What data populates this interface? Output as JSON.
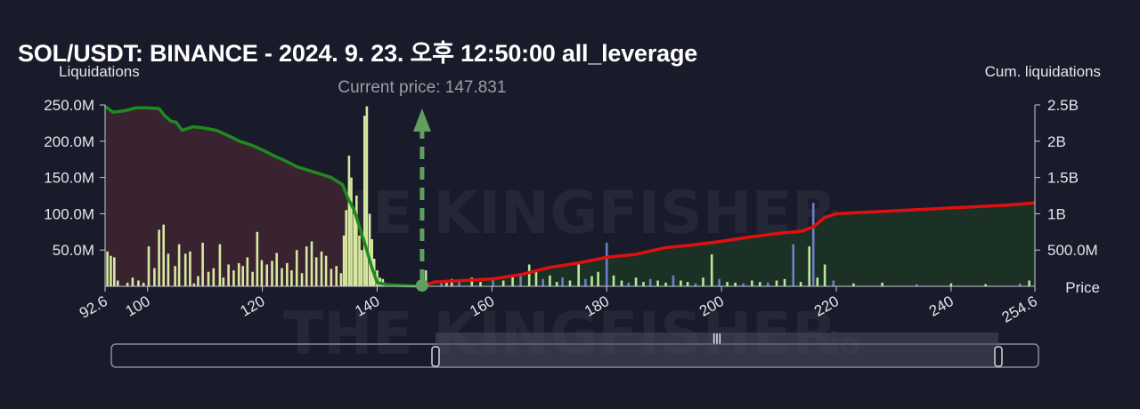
{
  "header": {
    "title": "SOL/USDT: BINANCE - 2024. 9. 23. 오후 12:50:00 all_leverage"
  },
  "watermark": {
    "brand": "THE KINGFISHER",
    "suffix": ".io"
  },
  "colors": {
    "background": "#191b2a",
    "long_fill": "#3a2330",
    "short_fill": "#1c3126",
    "long_line": "#1f8a1f",
    "short_line": "#e01010",
    "bar_long": "#d6e9a0",
    "bar_short": "#b8e89a",
    "bar_blue": "#6d7fc6",
    "current_marker": "#5fa05f"
  },
  "chart_data": {
    "type": "bar",
    "xlabel": "Price",
    "ylabel_left": "Liquidations",
    "ylabel_right": "Cum. liquidations",
    "xlim": [
      92.6,
      254.6
    ],
    "x_ticks": [
      "92.6",
      "100",
      "120",
      "140",
      "160",
      "180",
      "200",
      "220",
      "240",
      "254.6"
    ],
    "x_tick_values": [
      92.6,
      100,
      120,
      140,
      160,
      180,
      200,
      220,
      240,
      254.6
    ],
    "ylim_left": [
      0,
      250000000
    ],
    "y_ticks_left": [
      "250.0M",
      "200.0M",
      "150.0M",
      "100.0M",
      "50.0M"
    ],
    "y_tick_values_left": [
      250000000,
      200000000,
      150000000,
      100000000,
      50000000
    ],
    "ylim_right": [
      0,
      2500000000
    ],
    "y_ticks_right": [
      "2.5B",
      "2B",
      "1.5B",
      "1B",
      "500.0M"
    ],
    "y_tick_values_right": [
      2500000000,
      2000000000,
      1500000000,
      1000000000,
      500000000
    ],
    "current_price": 147.831,
    "current_price_label": "Current price: 147.831",
    "grid": false,
    "legend": "none",
    "cumulative_long": {
      "x": [
        92.6,
        94,
        96,
        98,
        100,
        102,
        103,
        104,
        105,
        106,
        108,
        110,
        112,
        114,
        116,
        118,
        120,
        122,
        124,
        126,
        128,
        130,
        132,
        134,
        135,
        136,
        137,
        138,
        139,
        140,
        142,
        144,
        146,
        147.831
      ],
      "y": [
        2480000000,
        2400000000,
        2420000000,
        2460000000,
        2460000000,
        2450000000,
        2350000000,
        2280000000,
        2260000000,
        2150000000,
        2200000000,
        2180000000,
        2150000000,
        2080000000,
        2000000000,
        1950000000,
        1880000000,
        1800000000,
        1730000000,
        1650000000,
        1600000000,
        1550000000,
        1500000000,
        1400000000,
        1200000000,
        1050000000,
        800000000,
        550000000,
        280000000,
        50000000,
        20000000,
        12000000,
        5000000,
        0
      ]
    },
    "cumulative_short": {
      "x": [
        147.831,
        150,
        155,
        160,
        165,
        170,
        175,
        180,
        185,
        190,
        195,
        200,
        205,
        210,
        214,
        216,
        218,
        220,
        225,
        230,
        235,
        240,
        245,
        250,
        254.6
      ],
      "y": [
        0,
        60000000,
        80000000,
        100000000,
        160000000,
        260000000,
        320000000,
        400000000,
        440000000,
        530000000,
        570000000,
        620000000,
        680000000,
        730000000,
        760000000,
        820000000,
        950000000,
        1000000000,
        1020000000,
        1040000000,
        1060000000,
        1080000000,
        1100000000,
        1120000000,
        1150000000
      ]
    },
    "bars_long": {
      "x": [
        93,
        93.6,
        94.2,
        94.8,
        96.5,
        97.4,
        98.4,
        99.3,
        100.2,
        101.2,
        102,
        102.8,
        103.6,
        104.8,
        105.5,
        106.6,
        107.4,
        108.1,
        108.8,
        109.6,
        110.6,
        111.5,
        112.6,
        113.2,
        114.1,
        115,
        115.9,
        116.6,
        117.4,
        118.3,
        119.1,
        119.9,
        120.8,
        121.7,
        122.5,
        123.4,
        124.3,
        125.1,
        126,
        126.9,
        127.7,
        128.6,
        129.4,
        130.3,
        131.1,
        132,
        132.9,
        133.7,
        134.2,
        134.6,
        135.1,
        135.5,
        136,
        136.4,
        136.9,
        137.3,
        137.8,
        138.2,
        138.7,
        139.1,
        139.5,
        140,
        140.5,
        141
      ],
      "y": [
        48000000,
        42000000,
        40000000,
        8000000,
        5000000,
        12000000,
        8000000,
        5000000,
        55000000,
        25000000,
        78000000,
        85000000,
        45000000,
        28000000,
        58000000,
        45000000,
        48000000,
        4000000,
        14000000,
        60000000,
        20000000,
        25000000,
        58000000,
        12000000,
        30000000,
        22000000,
        32000000,
        28000000,
        40000000,
        20000000,
        75000000,
        36000000,
        30000000,
        35000000,
        46000000,
        25000000,
        32000000,
        22000000,
        50000000,
        18000000,
        55000000,
        62000000,
        40000000,
        48000000,
        42000000,
        24000000,
        28000000,
        18000000,
        70000000,
        105000000,
        180000000,
        150000000,
        100000000,
        125000000,
        70000000,
        50000000,
        235000000,
        248000000,
        100000000,
        65000000,
        38000000,
        22000000,
        12000000,
        10000000
      ]
    },
    "bars_short": {
      "x": [
        148.5,
        151.2,
        152.1,
        153,
        154.3,
        156.5,
        158,
        160.2,
        162,
        163.6,
        165,
        166.5,
        167.7,
        168.9,
        170.1,
        171.3,
        172.3,
        173.6,
        175.1,
        176.3,
        177.4,
        178.5,
        180,
        181.2,
        182.6,
        183.8,
        185.1,
        186.4,
        187.6,
        188.9,
        190.3,
        191.6,
        192.9,
        194.1,
        195.5,
        196.8,
        198.3,
        199.6,
        201,
        202.4,
        203.8,
        205.3,
        206.7,
        208.1,
        209.6,
        211,
        212.5,
        213.8,
        215.3,
        216,
        216.7,
        218,
        219.5,
        223,
        228,
        234,
        240,
        246,
        252,
        253.6
      ],
      "y": [
        22000000,
        8000000,
        6000000,
        10000000,
        8000000,
        12000000,
        6000000,
        10000000,
        8000000,
        14000000,
        18000000,
        30000000,
        20000000,
        10000000,
        15000000,
        6000000,
        12000000,
        8000000,
        30000000,
        10000000,
        14000000,
        20000000,
        60000000,
        15000000,
        8000000,
        5000000,
        12000000,
        6000000,
        10000000,
        8000000,
        5000000,
        15000000,
        8000000,
        6000000,
        4000000,
        12000000,
        44000000,
        10000000,
        6000000,
        5000000,
        4000000,
        8000000,
        6000000,
        5000000,
        8000000,
        10000000,
        58000000,
        6000000,
        55000000,
        115000000,
        12000000,
        30000000,
        8000000,
        4000000,
        5000000,
        3000000,
        4000000,
        3000000,
        4000000,
        8000000
      ]
    }
  },
  "slider": {
    "handle_glyph": "|||"
  }
}
